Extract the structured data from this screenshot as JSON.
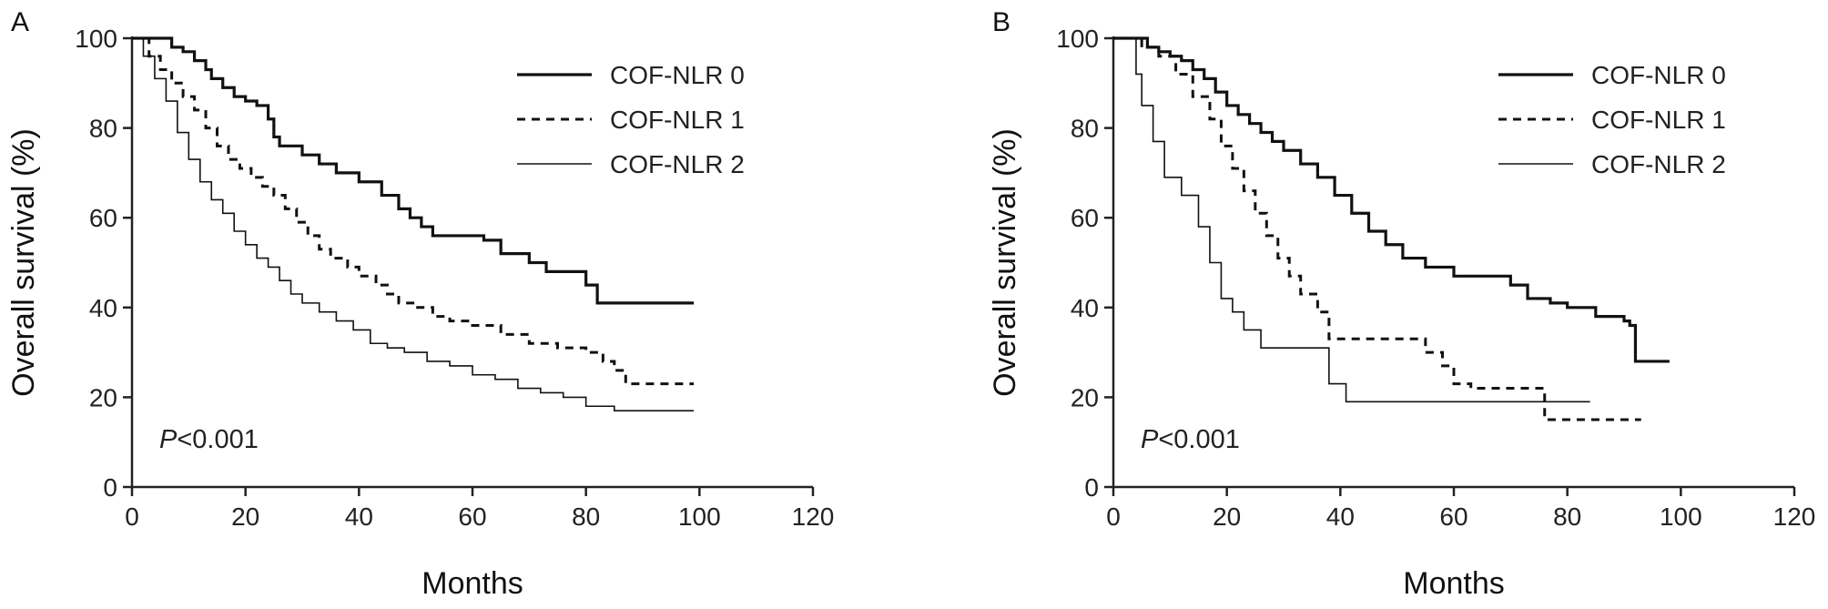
{
  "chart_data": [
    {
      "type": "line",
      "panel_label": "A",
      "xlabel": "Months",
      "ylabel": "Overall survival (%)",
      "xlim": [
        0,
        120
      ],
      "ylim": [
        0,
        100
      ],
      "xticks": [
        0,
        20,
        40,
        60,
        80,
        100,
        120
      ],
      "yticks": [
        0,
        20,
        40,
        60,
        80,
        100
      ],
      "legend_position": "top-right",
      "annotation": {
        "italic": "P",
        "text": "<0.001"
      },
      "series": [
        {
          "name": "COF-NLR 0",
          "line_style": "solid-thick",
          "x": [
            0,
            7,
            9,
            11,
            13,
            14,
            16,
            18,
            20,
            22,
            24,
            25,
            26,
            30,
            33,
            36,
            40,
            44,
            47,
            49,
            51,
            53,
            62,
            65,
            70,
            73,
            80,
            82,
            99
          ],
          "y": [
            100,
            98,
            97,
            95,
            93,
            91,
            89,
            87,
            86,
            85,
            82,
            78,
            76,
            74,
            72,
            70,
            68,
            65,
            62,
            60,
            58,
            56,
            55,
            52,
            50,
            48,
            45,
            41,
            41
          ]
        },
        {
          "name": "COF-NLR 1",
          "line_style": "dashed",
          "x": [
            0,
            3,
            5,
            7,
            9,
            11,
            13,
            15,
            17,
            19,
            21,
            23,
            25,
            27,
            29,
            31,
            33,
            35,
            38,
            40,
            43,
            45,
            47,
            50,
            53,
            56,
            60,
            65,
            70,
            75,
            80,
            83,
            85,
            87,
            99
          ],
          "y": [
            100,
            96,
            93,
            90,
            87,
            84,
            80,
            76,
            73,
            71,
            69,
            67,
            65,
            62,
            59,
            56,
            53,
            51,
            49,
            47,
            45,
            43,
            41,
            40,
            38,
            37,
            36,
            34,
            32,
            31,
            30,
            28,
            26,
            23,
            23
          ]
        },
        {
          "name": "COF-NLR 2",
          "line_style": "solid-thin",
          "x": [
            0,
            2,
            4,
            6,
            8,
            10,
            12,
            14,
            16,
            18,
            20,
            22,
            24,
            26,
            28,
            30,
            33,
            36,
            39,
            42,
            45,
            48,
            52,
            56,
            60,
            64,
            68,
            72,
            76,
            80,
            85,
            99
          ],
          "y": [
            100,
            96,
            91,
            86,
            79,
            73,
            68,
            64,
            61,
            57,
            54,
            51,
            49,
            46,
            43,
            41,
            39,
            37,
            35,
            32,
            31,
            30,
            28,
            27,
            25,
            24,
            22,
            21,
            20,
            18,
            17,
            17
          ]
        }
      ]
    },
    {
      "type": "line",
      "panel_label": "B",
      "xlabel": "Months",
      "ylabel": "Overall survival (%)",
      "xlim": [
        0,
        120
      ],
      "ylim": [
        0,
        100
      ],
      "xticks": [
        0,
        20,
        40,
        60,
        80,
        100,
        120
      ],
      "yticks": [
        0,
        20,
        40,
        60,
        80,
        100
      ],
      "legend_position": "top-right",
      "annotation": {
        "italic": "P",
        "text": "<0.001"
      },
      "series": [
        {
          "name": "COF-NLR 0",
          "line_style": "solid-thick",
          "x": [
            0,
            6,
            8,
            10,
            12,
            14,
            16,
            18,
            20,
            22,
            24,
            26,
            28,
            30,
            33,
            36,
            39,
            42,
            45,
            48,
            51,
            55,
            60,
            65,
            70,
            73,
            77,
            80,
            85,
            90,
            91,
            92,
            98
          ],
          "y": [
            100,
            98,
            97,
            96,
            95,
            93,
            91,
            88,
            85,
            83,
            81,
            79,
            77,
            75,
            72,
            69,
            65,
            61,
            57,
            54,
            51,
            49,
            47,
            47,
            45,
            42,
            41,
            40,
            38,
            37,
            36,
            28,
            28
          ]
        },
        {
          "name": "COF-NLR 1",
          "line_style": "dashed",
          "x": [
            0,
            5,
            8,
            11,
            14,
            17,
            19,
            21,
            23,
            25,
            27,
            29,
            31,
            33,
            36,
            38,
            46,
            55,
            58,
            60,
            63,
            70,
            76,
            93
          ],
          "y": [
            100,
            98,
            96,
            92,
            87,
            82,
            76,
            71,
            66,
            61,
            56,
            51,
            47,
            43,
            39,
            33,
            33,
            30,
            27,
            23,
            22,
            22,
            15,
            15
          ]
        },
        {
          "name": "COF-NLR 2",
          "line_style": "solid-thin",
          "x": [
            0,
            4,
            5,
            7,
            9,
            12,
            15,
            17,
            19,
            21,
            23,
            26,
            30,
            35,
            38,
            41,
            60,
            84
          ],
          "y": [
            100,
            92,
            85,
            77,
            69,
            65,
            58,
            50,
            42,
            39,
            35,
            31,
            31,
            31,
            23,
            19,
            19,
            19
          ]
        }
      ]
    }
  ]
}
